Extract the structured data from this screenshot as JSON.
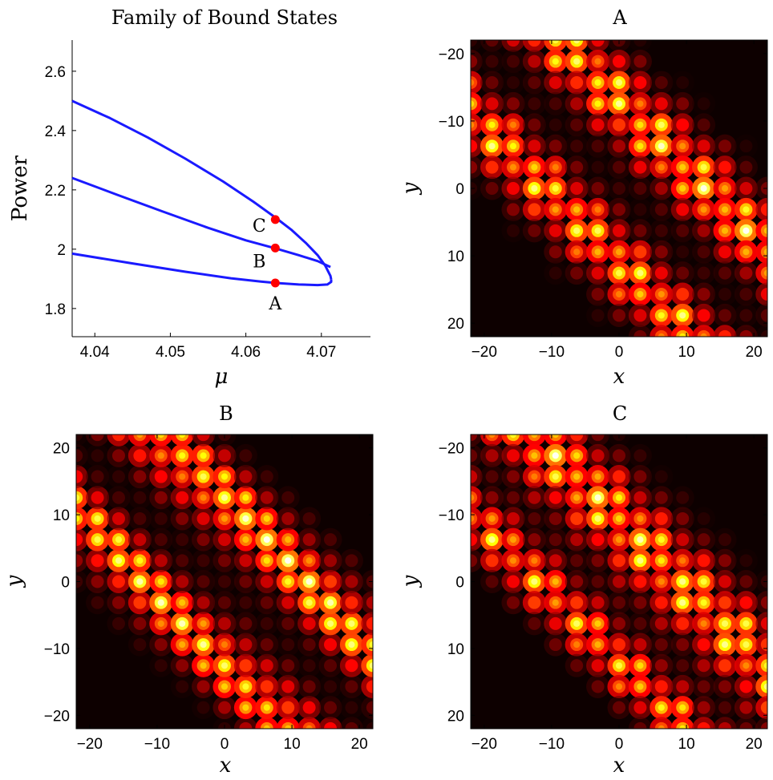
{
  "chart_data": [
    {
      "type": "line",
      "title": "Family of Bound States",
      "xlabel": "μ",
      "ylabel": "Power",
      "xlim": [
        4.037,
        4.0765
      ],
      "ylim": [
        1.705,
        2.705
      ],
      "xticks": [
        "4.04",
        "4.05",
        "4.06",
        "4.07"
      ],
      "xtick_values": [
        4.04,
        4.05,
        4.06,
        4.07
      ],
      "yticks": [
        "1.8",
        "2",
        "2.2",
        "2.4",
        "2.6"
      ],
      "ytick_values": [
        1.8,
        2.0,
        2.2,
        2.4,
        2.6
      ],
      "line_color": "#1a1aff",
      "series": [
        {
          "points": [
            [
              4.037,
              2.5
            ],
            [
              4.042,
              2.442
            ],
            [
              4.047,
              2.377
            ],
            [
              4.052,
              2.305
            ],
            [
              4.057,
              2.228
            ],
            [
              4.061,
              2.16
            ],
            [
              4.064,
              2.105
            ],
            [
              4.066,
              2.066
            ],
            [
              4.068,
              2.02
            ],
            [
              4.0695,
              1.98
            ],
            [
              4.0705,
              1.945
            ],
            [
              4.0712,
              1.91
            ],
            [
              4.0713,
              1.898
            ]
          ]
        },
        {
          "points": [
            [
              4.037,
              2.24
            ],
            [
              4.043,
              2.183
            ],
            [
              4.049,
              2.127
            ],
            [
              4.055,
              2.072
            ],
            [
              4.06,
              2.03
            ],
            [
              4.064,
              2.002
            ],
            [
              4.067,
              1.98
            ],
            [
              4.0695,
              1.96
            ],
            [
              4.0712,
              1.94
            ]
          ]
        },
        {
          "points": [
            [
              4.037,
              1.985
            ],
            [
              4.045,
              1.952
            ],
            [
              4.052,
              1.924
            ],
            [
              4.058,
              1.902
            ],
            [
              4.062,
              1.891
            ],
            [
              4.064,
              1.886
            ],
            [
              4.067,
              1.881
            ],
            [
              4.0695,
              1.879
            ],
            [
              4.0708,
              1.881
            ],
            [
              4.0713,
              1.89
            ],
            [
              4.0713,
              1.898
            ]
          ]
        }
      ],
      "markers": [
        {
          "label": "C",
          "x": 4.0639,
          "y": 2.1,
          "color": "#ff0000"
        },
        {
          "label": "B",
          "x": 4.0639,
          "y": 2.004,
          "color": "#ff0000"
        },
        {
          "label": "A",
          "x": 4.0639,
          "y": 1.886,
          "color": "#ff0000"
        }
      ]
    },
    {
      "type": "heatmap",
      "title": "A",
      "xlabel": "x",
      "ylabel": "y",
      "xlim": [
        -22,
        22
      ],
      "ylim": [
        -22,
        22
      ],
      "y_reversed": true,
      "xticks": [
        "−20",
        "−10",
        "0",
        "10",
        "20"
      ],
      "xtick_values": [
        -20,
        -10,
        0,
        10,
        20
      ],
      "yticks": [
        "−20",
        "−10",
        "0",
        "10",
        "20"
      ],
      "ytick_values": [
        -20,
        -10,
        0,
        10,
        20
      ],
      "colormap": "hot",
      "lattice_spacing": 3.14,
      "bands": [
        {
          "intercept": 13,
          "width": 7,
          "peak": 1.0
        },
        {
          "intercept": -11,
          "width": 6.5,
          "peak": 0.95
        }
      ]
    },
    {
      "type": "heatmap",
      "title": "B",
      "xlabel": "x",
      "ylabel": "y",
      "xlim": [
        -22,
        22
      ],
      "ylim": [
        -22,
        22
      ],
      "y_reversed": false,
      "xticks": [
        "−20",
        "−10",
        "0",
        "10",
        "20"
      ],
      "xtick_values": [
        -20,
        -10,
        0,
        10,
        20
      ],
      "yticks": [
        "20",
        "10",
        "0",
        "−10",
        "−20"
      ],
      "ytick_values": [
        20,
        10,
        0,
        -10,
        -20
      ],
      "colormap": "hot",
      "lattice_spacing": 3.14,
      "bands": [
        {
          "intercept": 12,
          "width": 7,
          "peak": 1.0
        },
        {
          "intercept": -12,
          "width": 6.5,
          "peak": 0.95
        }
      ]
    },
    {
      "type": "heatmap",
      "title": "C",
      "xlabel": "x",
      "ylabel": "y",
      "xlim": [
        -22,
        22
      ],
      "ylim": [
        -22,
        22
      ],
      "y_reversed": true,
      "xticks": [
        "−20",
        "−10",
        "0",
        "10",
        "20"
      ],
      "xtick_values": [
        -20,
        -10,
        0,
        10,
        20
      ],
      "yticks": [
        "−20",
        "−10",
        "0",
        "10",
        "20"
      ],
      "ytick_values": [
        -20,
        -10,
        0,
        10,
        20
      ],
      "colormap": "hot",
      "lattice_spacing": 3.14,
      "bands": [
        {
          "intercept": 9,
          "width": 8,
          "peak": 1.0
        },
        {
          "intercept": -12,
          "width": 5.5,
          "peak": 0.9
        }
      ]
    }
  ]
}
